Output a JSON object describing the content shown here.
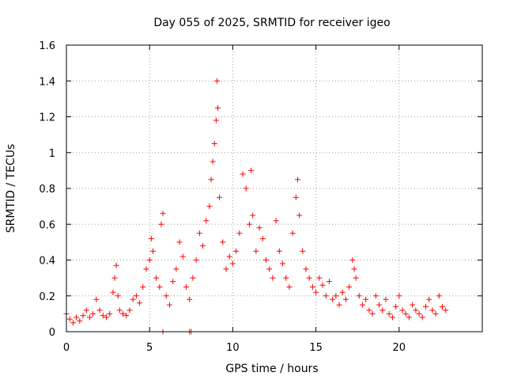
{
  "chart_data": {
    "type": "scatter",
    "title": "Day 055 of 2025, SRMTID for receiver igeo",
    "xlabel": "GPS time / hours",
    "ylabel": "SRMTID / TECUs",
    "xlim": [
      0,
      25
    ],
    "ylim": [
      0,
      1.6
    ],
    "xticks": [
      0,
      5,
      10,
      15,
      20
    ],
    "xtick_labels": [
      "0",
      "5",
      "10",
      "15",
      "20"
    ],
    "yticks": [
      0,
      0.2,
      0.4,
      0.6,
      0.8,
      1.0,
      1.2,
      1.4,
      1.6
    ],
    "ytick_labels": [
      "0",
      "0.2",
      "0.4",
      "0.6",
      "0.8",
      "1",
      "1.2",
      "1.4",
      "1.6"
    ],
    "grid": true,
    "marker": "plus",
    "color": "#ff0000",
    "series": [
      {
        "name": "SRMTID",
        "x": [
          0.0,
          0.2,
          0.4,
          0.6,
          0.8,
          1.0,
          1.2,
          1.4,
          1.6,
          1.8,
          2.0,
          2.2,
          2.4,
          2.6,
          2.8,
          2.9,
          3.0,
          3.1,
          3.2,
          3.4,
          3.6,
          3.8,
          4.0,
          4.2,
          4.4,
          4.6,
          4.8,
          5.0,
          5.1,
          5.2,
          5.4,
          5.6,
          5.7,
          5.8,
          6.0,
          6.2,
          6.4,
          6.6,
          6.8,
          7.0,
          7.2,
          7.4,
          7.6,
          7.8,
          8.0,
          8.2,
          8.4,
          8.6,
          8.7,
          8.8,
          8.9,
          9.0,
          9.05,
          9.1,
          9.2,
          9.4,
          9.6,
          9.8,
          10.0,
          10.2,
          10.4,
          10.6,
          10.8,
          11.0,
          11.1,
          11.2,
          11.4,
          11.6,
          11.8,
          12.0,
          12.2,
          12.4,
          12.6,
          12.8,
          13.0,
          13.2,
          13.4,
          13.6,
          13.8,
          13.9,
          14.0,
          14.2,
          14.4,
          14.6,
          14.8,
          15.0,
          15.2,
          15.4,
          15.6,
          15.8,
          16.0,
          16.2,
          16.4,
          16.6,
          16.8,
          17.0,
          17.2,
          17.3,
          17.4,
          17.6,
          17.8,
          18.0,
          18.2,
          18.4,
          18.6,
          18.8,
          19.0,
          19.2,
          19.4,
          19.6,
          19.8,
          20.0,
          20.2,
          20.4,
          20.6,
          20.8,
          21.0,
          21.2,
          21.4,
          21.6,
          21.8,
          22.0,
          22.2,
          22.4,
          22.6,
          22.8,
          5.8,
          7.4,
          7.5
        ],
        "y": [
          0.1,
          0.07,
          0.05,
          0.08,
          0.06,
          0.09,
          0.12,
          0.08,
          0.1,
          0.18,
          0.12,
          0.09,
          0.08,
          0.1,
          0.22,
          0.3,
          0.37,
          0.2,
          0.12,
          0.1,
          0.09,
          0.12,
          0.18,
          0.2,
          0.16,
          0.25,
          0.35,
          0.4,
          0.52,
          0.45,
          0.3,
          0.25,
          0.6,
          0.66,
          0.2,
          0.15,
          0.28,
          0.35,
          0.5,
          0.42,
          0.25,
          0.18,
          0.3,
          0.4,
          0.55,
          0.48,
          0.62,
          0.7,
          0.85,
          0.95,
          1.05,
          1.18,
          1.4,
          1.25,
          0.75,
          0.5,
          0.35,
          0.42,
          0.38,
          0.45,
          0.55,
          0.88,
          0.8,
          0.6,
          0.9,
          0.65,
          0.45,
          0.58,
          0.52,
          0.4,
          0.35,
          0.3,
          0.62,
          0.45,
          0.38,
          0.3,
          0.25,
          0.55,
          0.75,
          0.85,
          0.65,
          0.45,
          0.35,
          0.3,
          0.25,
          0.22,
          0.3,
          0.26,
          0.2,
          0.28,
          0.18,
          0.2,
          0.15,
          0.22,
          0.18,
          0.25,
          0.4,
          0.35,
          0.3,
          0.2,
          0.15,
          0.18,
          0.12,
          0.1,
          0.2,
          0.15,
          0.12,
          0.18,
          0.1,
          0.08,
          0.14,
          0.2,
          0.12,
          0.1,
          0.08,
          0.15,
          0.12,
          0.1,
          0.08,
          0.14,
          0.18,
          0.12,
          0.1,
          0.2,
          0.14,
          0.12,
          0.0,
          0.0,
          0.0
        ]
      }
    ]
  }
}
